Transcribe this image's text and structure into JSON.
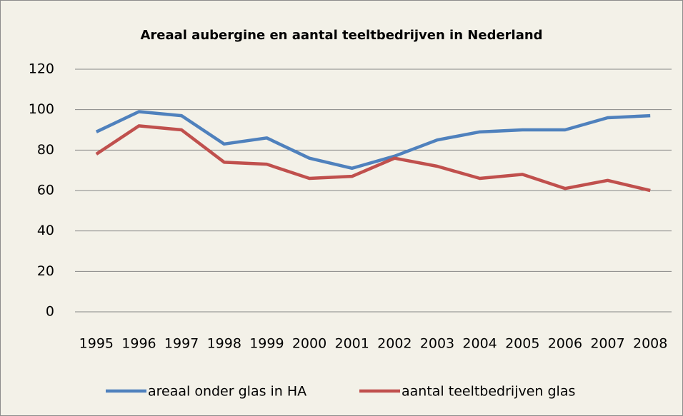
{
  "chart_data": {
    "type": "line",
    "title": "Areaal aubergine en aantal teeltbedrijven in Nederland",
    "categories": [
      "1995",
      "1996",
      "1997",
      "1998",
      "1999",
      "2000",
      "2001",
      "2002",
      "2003",
      "2004",
      "2005",
      "2006",
      "2007",
      "2008"
    ],
    "series": [
      {
        "name": "areaal onder glas in HA",
        "color": "#4f81bd",
        "values": [
          89,
          99,
          97,
          83,
          86,
          76,
          71,
          77,
          85,
          89,
          90,
          90,
          96,
          97
        ]
      },
      {
        "name": "aantal teeltbedrijven glas",
        "color": "#c0504d",
        "values": [
          78,
          92,
          90,
          74,
          73,
          66,
          67,
          76,
          72,
          66,
          68,
          61,
          65,
          60
        ]
      }
    ],
    "ylim": [
      0,
      120
    ],
    "yticks": [
      0,
      20,
      40,
      60,
      80,
      100,
      120
    ],
    "grid": true,
    "legend": "bottom"
  }
}
